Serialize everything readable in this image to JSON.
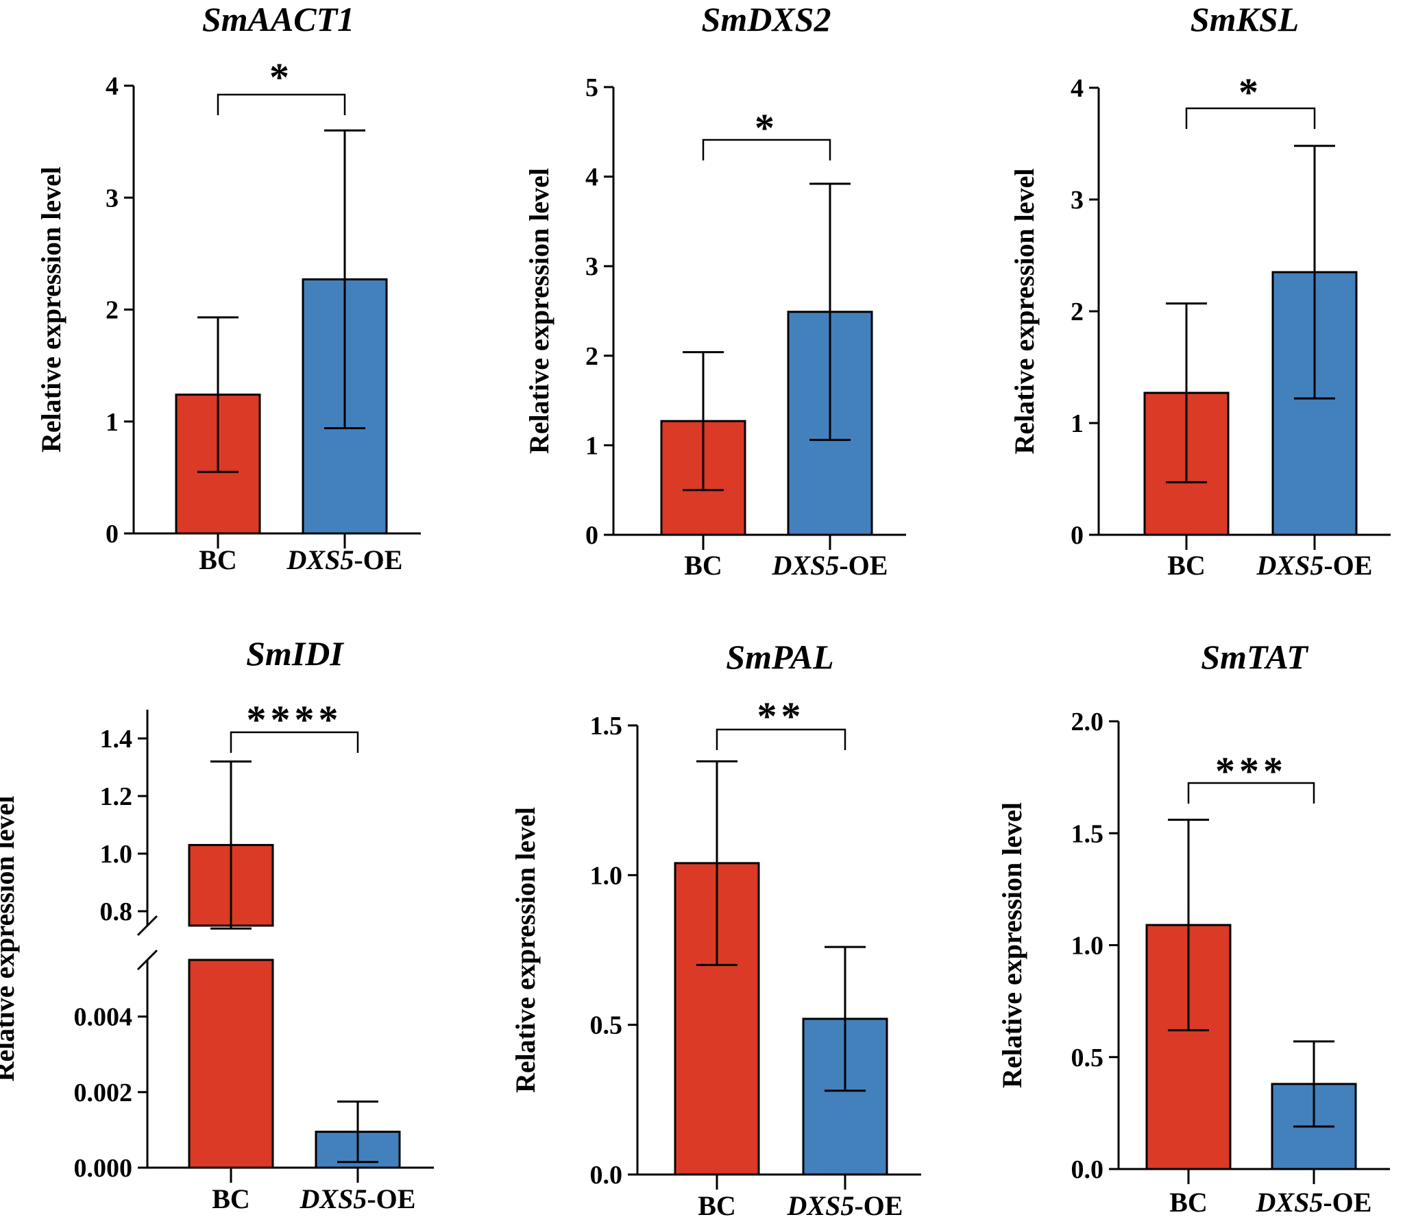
{
  "colors": {
    "bc": "#db3a26",
    "oe": "#4381bd",
    "axis": "#000000"
  },
  "chart_data": [
    {
      "type": "bar",
      "title": "SmAACT1",
      "ylabel": "Relative expression level",
      "categories": [
        {
          "italic": "",
          "plain": "BC"
        },
        {
          "italic": "DXS5",
          "plain": "-OE"
        }
      ],
      "values": [
        1.24,
        2.27
      ],
      "errors": [
        0.69,
        1.33
      ],
      "ylim": [
        0,
        4
      ],
      "yticks": [
        "0",
        "1",
        "2",
        "3",
        "4"
      ],
      "significance": "*"
    },
    {
      "type": "bar",
      "title": "SmDXS2",
      "ylabel": "Relative expression level",
      "categories": [
        {
          "italic": "",
          "plain": "BC"
        },
        {
          "italic": "DXS5",
          "plain": "-OE"
        }
      ],
      "values": [
        1.27,
        2.49
      ],
      "errors": [
        0.77,
        1.43
      ],
      "ylim": [
        0,
        5
      ],
      "yticks": [
        "0",
        "1",
        "2",
        "3",
        "4",
        "5"
      ],
      "significance": "*"
    },
    {
      "type": "bar",
      "title": "SmKSL",
      "ylabel": "Relative expression level",
      "categories": [
        {
          "italic": "",
          "plain": "BC"
        },
        {
          "italic": "DXS5",
          "plain": "-OE"
        }
      ],
      "values": [
        1.27,
        2.35
      ],
      "errors": [
        0.8,
        1.13
      ],
      "ylim": [
        0,
        4
      ],
      "yticks": [
        "0",
        "1",
        "2",
        "3",
        "4"
      ],
      "significance": "*"
    },
    {
      "type": "bar",
      "title": "SmIDI",
      "ylabel": "Relative expression level",
      "categories": [
        {
          "italic": "",
          "plain": "BC"
        },
        {
          "italic": "DXS5",
          "plain": "-OE"
        }
      ],
      "values": [
        1.03,
        0.00095
      ],
      "errors": [
        0.29,
        0.0008
      ],
      "broken_axis": {
        "upper": {
          "ylim": [
            0.75,
            1.5
          ],
          "yticks": [
            "0.8",
            "1.0",
            "1.2",
            "1.4"
          ]
        },
        "lower": {
          "ylim": [
            0,
            0.0055
          ],
          "yticks": [
            "0.000",
            "0.002",
            "0.004"
          ]
        }
      },
      "significance": "****"
    },
    {
      "type": "bar",
      "title": "SmPAL",
      "ylabel": "Relative expression level",
      "categories": [
        {
          "italic": "",
          "plain": "BC"
        },
        {
          "italic": "DXS5",
          "plain": "-OE"
        }
      ],
      "values": [
        1.04,
        0.52
      ],
      "errors": [
        0.34,
        0.24
      ],
      "ylim": [
        0,
        1.5
      ],
      "yticks": [
        "0.0",
        "0.5",
        "1.0",
        "1.5"
      ],
      "significance": "**"
    },
    {
      "type": "bar",
      "title": "SmTAT",
      "ylabel": "Relative expression level",
      "categories": [
        {
          "italic": "",
          "plain": "BC"
        },
        {
          "italic": "DXS5",
          "plain": "-OE"
        }
      ],
      "values": [
        1.09,
        0.38
      ],
      "errors": [
        0.47,
        0.19
      ],
      "ylim": [
        0,
        2.0
      ],
      "yticks": [
        "0.0",
        "0.5",
        "1.0",
        "1.5",
        "2.0"
      ],
      "significance": "***"
    }
  ]
}
